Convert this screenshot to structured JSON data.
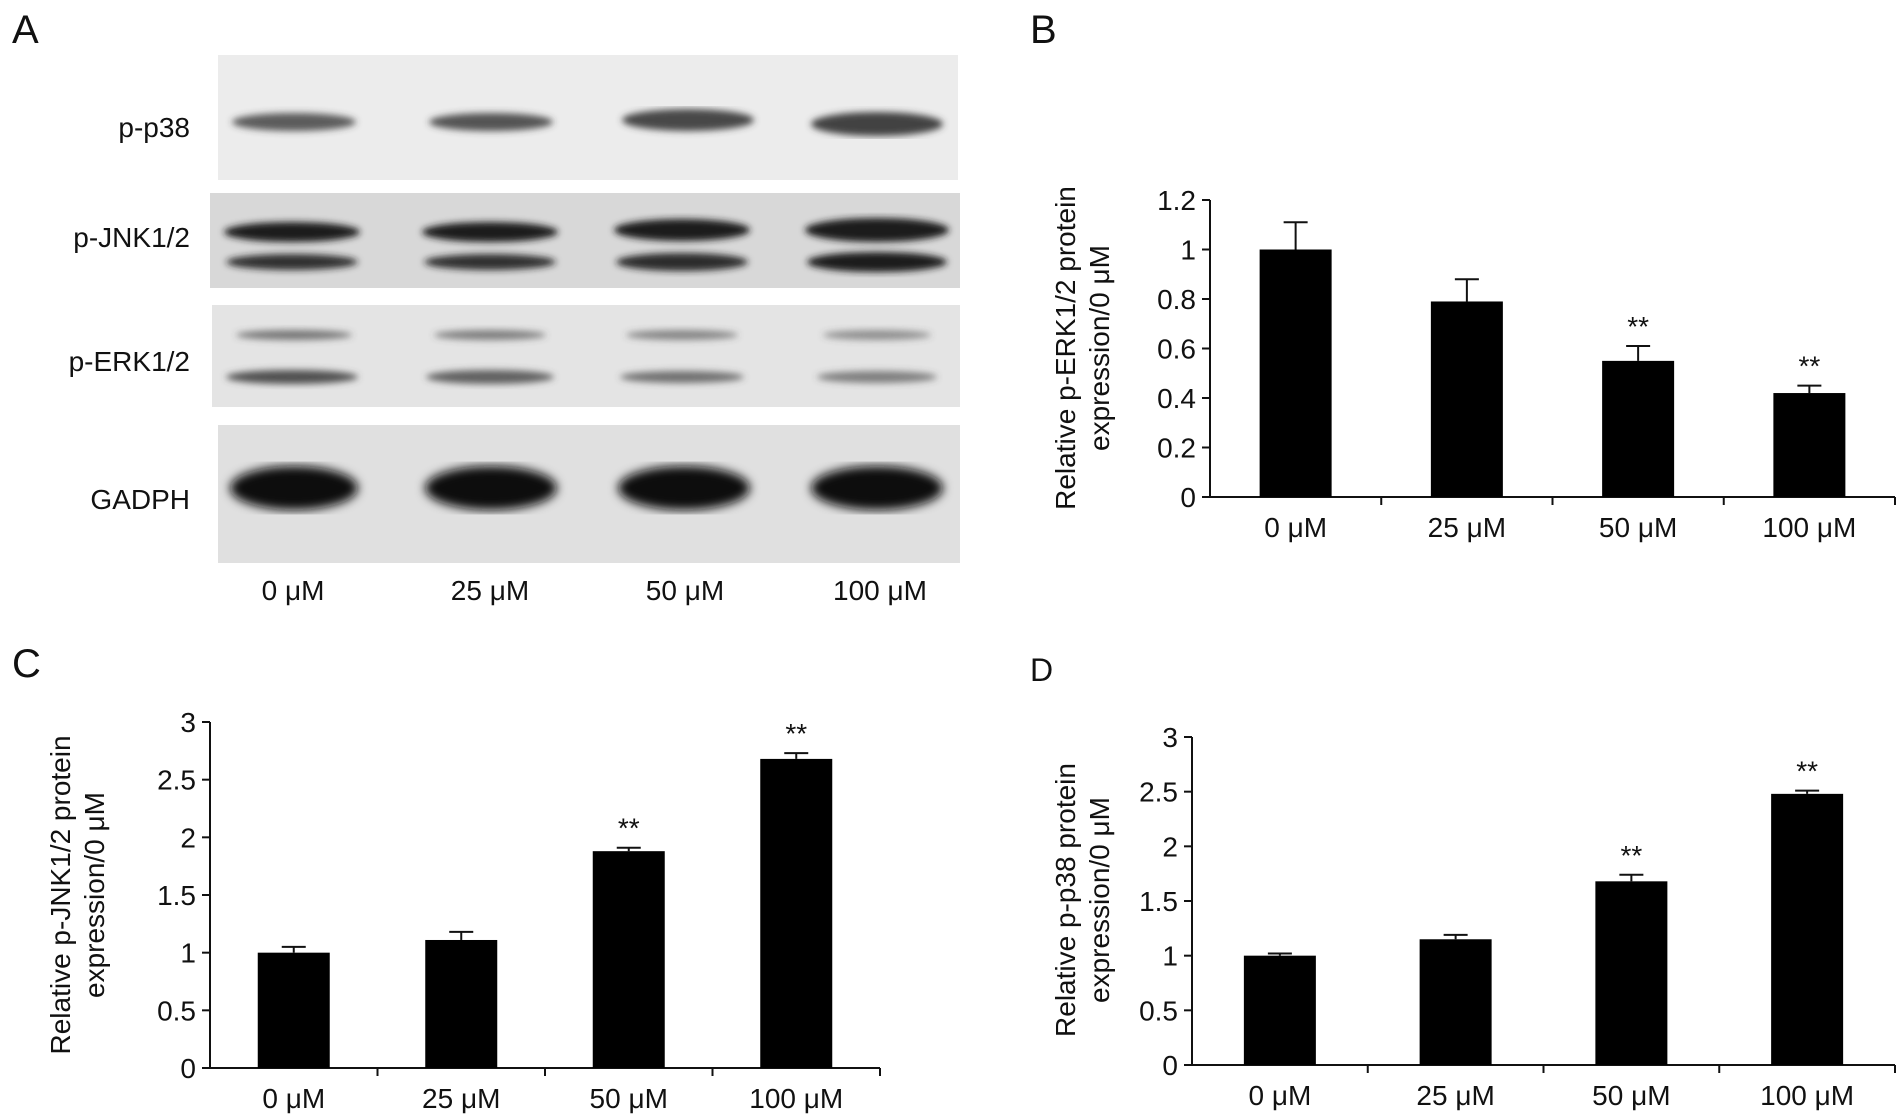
{
  "panels": {
    "a": "A",
    "b": "B",
    "c": "C",
    "d": "D"
  },
  "blot": {
    "proteins": [
      "p-p38",
      "p-JNK1/2",
      "p-ERK1/2",
      "GADPH"
    ],
    "lanes": [
      "0 μM",
      "25 μM",
      "50 μM",
      "100 μM"
    ]
  },
  "chart_data": [
    {
      "panel": "B",
      "type": "bar",
      "categories": [
        "0 μM",
        "25 μM",
        "50 μM",
        "100 μM"
      ],
      "values": [
        1.0,
        0.79,
        0.55,
        0.42
      ],
      "errors": [
        0.11,
        0.09,
        0.06,
        0.03
      ],
      "annotations": [
        "",
        "",
        "**",
        "**"
      ],
      "title": "",
      "xlabel": "",
      "ylabel": "Relative p-ERK1/2 protein expression/0 μM",
      "ylabel_lines": [
        "Relative p-ERK1/2 protein",
        "expression/0 μM"
      ],
      "ylim": [
        0,
        1.2
      ],
      "yticks": [
        0,
        0.2,
        0.4,
        0.6,
        0.8,
        1,
        1.2
      ],
      "ytick_labels": [
        "0",
        "0.2",
        "0.4",
        "0.6",
        "0.8",
        "1",
        "1.2"
      ]
    },
    {
      "panel": "C",
      "type": "bar",
      "categories": [
        "0 μM",
        "25 μM",
        "50 μM",
        "100 μM"
      ],
      "values": [
        1.0,
        1.11,
        1.88,
        2.68
      ],
      "errors": [
        0.05,
        0.07,
        0.03,
        0.05
      ],
      "annotations": [
        "",
        "",
        "**",
        "**"
      ],
      "title": "",
      "xlabel": "",
      "ylabel": "Relative p-JNK1/2 protein expression/0 μM",
      "ylabel_lines": [
        "Relative p-JNK1/2 protein",
        "expression/0 μM"
      ],
      "ylim": [
        0,
        3
      ],
      "yticks": [
        0,
        0.5,
        1,
        1.5,
        2,
        2.5,
        3
      ],
      "ytick_labels": [
        "0",
        "0.5",
        "1",
        "1.5",
        "2",
        "2.5",
        "3"
      ]
    },
    {
      "panel": "D",
      "type": "bar",
      "categories": [
        "0 μM",
        "25 μM",
        "50 μM",
        "100 μM"
      ],
      "values": [
        1.0,
        1.15,
        1.68,
        2.48
      ],
      "errors": [
        0.02,
        0.04,
        0.06,
        0.03
      ],
      "annotations": [
        "",
        "",
        "**",
        "**"
      ],
      "title": "",
      "xlabel": "",
      "ylabel": "Relative p-p38 protein expression/0 μM",
      "ylabel_lines": [
        "Relative p-p38 protein",
        "expression/0 μM"
      ],
      "ylim": [
        0,
        3
      ],
      "yticks": [
        0,
        0.5,
        1,
        1.5,
        2,
        2.5,
        3
      ],
      "ytick_labels": [
        "0",
        "0.5",
        "1",
        "1.5",
        "2",
        "2.5",
        "3"
      ]
    }
  ]
}
